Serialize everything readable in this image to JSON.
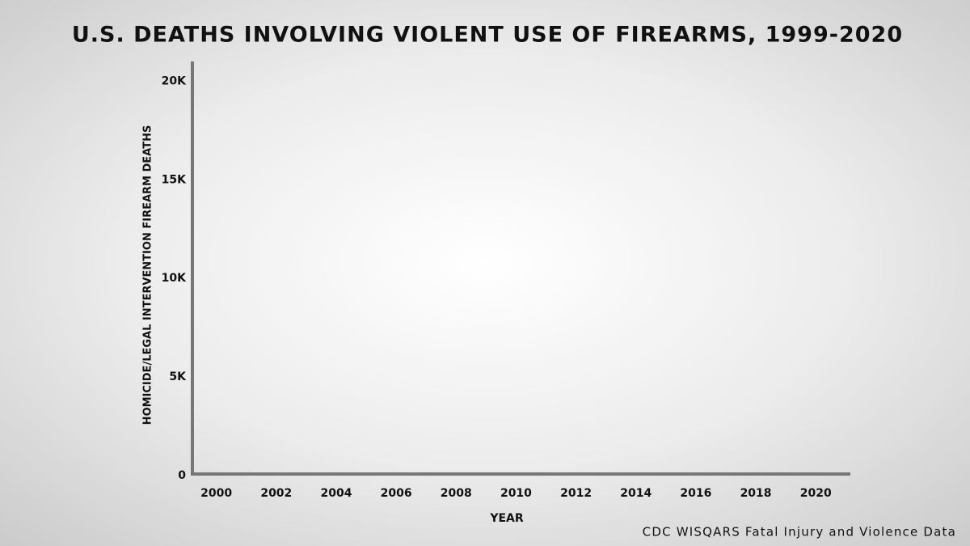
{
  "chart_data": {
    "type": "line",
    "title": "U.S. DEATHS INVOLVING VIOLENT USE OF FIREARMS, 1999-2020",
    "x_label": "YEAR",
    "y_label": "HOMICIDE/LEGAL INTERVENTION FIREARM DEATHS",
    "source": "CDC WISQARS Fatal Injury and Violence Data",
    "xlim": [
      1999.2,
      2021.1
    ],
    "xticks": [
      2000,
      2002,
      2004,
      2006,
      2008,
      2010,
      2012,
      2014,
      2016,
      2018,
      2020
    ],
    "ylim": [
      0,
      21000
    ],
    "yticks": [
      0,
      {
        "value": 5000,
        "label": "5K"
      },
      {
        "value": 10000,
        "label": "10K"
      },
      {
        "value": 15000,
        "label": "15K"
      },
      {
        "value": 20000,
        "label": "20K"
      }
    ],
    "grid": false,
    "series": []
  }
}
